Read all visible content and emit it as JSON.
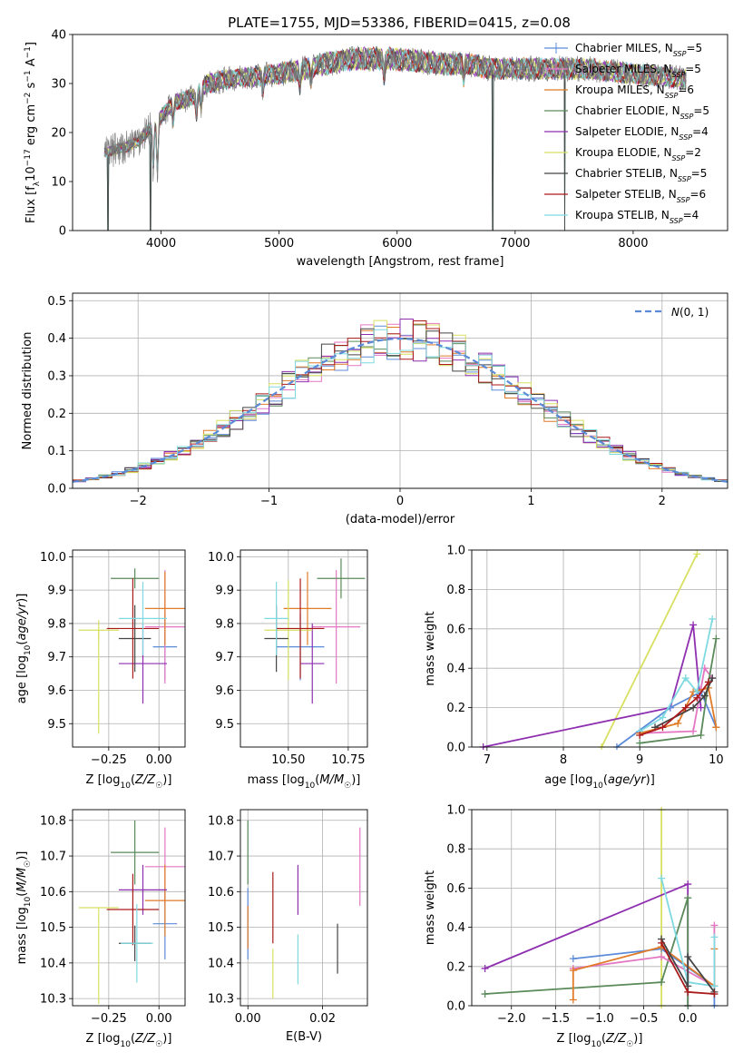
{
  "figure": {
    "title": "PLATE=1755, MJD=53386, FIBERID=0415, z=0.08"
  },
  "series_colors": {
    "Chabrier MILES": "#5b8bd8",
    "Salpeter MILES": "#e377c2",
    "Kroupa MILES": "#e07b27",
    "Chabrier ELODIE": "#5a8a5a",
    "Salpeter ELODIE": "#8e2fb0",
    "Kroupa ELODIE": "#d8e060",
    "Chabrier STELIB": "#444444",
    "Salpeter STELIB": "#aa1a1a",
    "Kroupa STELIB": "#7fd9e0"
  },
  "chart_data": [
    {
      "id": "spectrum",
      "type": "line",
      "title": "PLATE=1755, MJD=53386, FIBERID=0415, z=0.08",
      "xlabel": "wavelength [Angstrom, rest frame]",
      "ylabel": "Flux [f_λ 10^-17 erg cm^-2 s^-1 A^-1]",
      "xlim": [
        3250,
        8800
      ],
      "ylim": [
        0,
        40
      ],
      "xticks": [
        4000,
        5000,
        6000,
        7000,
        8000
      ],
      "yticks": [
        0,
        10,
        20,
        30,
        40
      ],
      "grid": false,
      "legend_loc": "right",
      "legend": [
        {
          "label": "Chabrier MILES, N",
          "sub": "SSP",
          "tail": "=5",
          "series": "Chabrier MILES",
          "marker": true
        },
        {
          "label": "Salpeter MILES, N",
          "sub": "SSP",
          "tail": "=5",
          "series": "Salpeter MILES",
          "marker": true
        },
        {
          "label": "Kroupa MILES, N",
          "sub": "SSP",
          "tail": "=6",
          "series": "Kroupa MILES",
          "marker": false
        },
        {
          "label": "Chabrier ELODIE, N",
          "sub": "SSP",
          "tail": "=5",
          "series": "Chabrier ELODIE",
          "marker": false
        },
        {
          "label": "Salpeter ELODIE, N",
          "sub": "SSP",
          "tail": "=4",
          "series": "Salpeter ELODIE",
          "marker": false
        },
        {
          "label": "Kroupa ELODIE, N",
          "sub": "SSP",
          "tail": "=2",
          "series": "Kroupa ELODIE",
          "marker": false
        },
        {
          "label": "Chabrier STELIB, N",
          "sub": "SSP",
          "tail": "=5",
          "series": "Chabrier STELIB",
          "marker": false
        },
        {
          "label": "Salpeter STELIB, N",
          "sub": "SSP",
          "tail": "=6",
          "series": "Salpeter STELIB",
          "marker": false
        },
        {
          "label": "Kroupa STELIB, N",
          "sub": "SSP",
          "tail": "=4",
          "series": "Kroupa STELIB",
          "marker": false
        }
      ],
      "continuum": [
        [
          3520,
          16
        ],
        [
          3700,
          17
        ],
        [
          3800,
          18
        ],
        [
          3950,
          22
        ],
        [
          4100,
          26
        ],
        [
          4250,
          27
        ],
        [
          4400,
          30
        ],
        [
          4600,
          31
        ],
        [
          4800,
          31.5
        ],
        [
          5000,
          32
        ],
        [
          5200,
          33
        ],
        [
          5400,
          34
        ],
        [
          5600,
          35
        ],
        [
          5800,
          35
        ],
        [
          6000,
          35
        ],
        [
          6200,
          34.5
        ],
        [
          6400,
          34
        ],
        [
          6600,
          34
        ],
        [
          6800,
          33
        ],
        [
          7000,
          33
        ],
        [
          7200,
          33
        ],
        [
          7400,
          33
        ],
        [
          7600,
          33
        ],
        [
          7800,
          32.5
        ],
        [
          8000,
          32
        ],
        [
          8200,
          31.5
        ],
        [
          8400,
          31
        ]
      ],
      "absorption": [
        [
          3934,
          0.6
        ],
        [
          3969,
          0.55
        ],
        [
          4102,
          0.85
        ],
        [
          4300,
          0.85
        ],
        [
          4340,
          0.88
        ],
        [
          4861,
          0.9
        ],
        [
          5175,
          0.9
        ],
        [
          5270,
          0.93
        ],
        [
          5890,
          0.9
        ],
        [
          6563,
          0.92
        ],
        [
          8498,
          0.9
        ],
        [
          8542,
          0.88
        ],
        [
          8662,
          0.9
        ]
      ],
      "spikes_data": [
        [
          3550,
          0
        ],
        [
          3910,
          0
        ],
        [
          6810,
          0
        ],
        [
          7420,
          0
        ]
      ],
      "data_series": "data"
    },
    {
      "id": "residuals",
      "type": "histogram",
      "xlabel": "(data-model)/error",
      "ylabel": "Normed distribution",
      "xlim": [
        -2.5,
        2.5
      ],
      "ylim": [
        0,
        0.52
      ],
      "xticks": [
        -2,
        -1,
        0,
        1,
        2
      ],
      "yticks": [
        0,
        0.1,
        0.2,
        0.3,
        0.4,
        0.5
      ],
      "grid": true,
      "legend_loc": "top-right",
      "legend": [
        {
          "label": "N(0, 1)"
        }
      ],
      "bin_width": 0.1,
      "reference": {
        "name": "N(0,1)",
        "mean": 0,
        "sigma": 1
      }
    },
    {
      "id": "z-age",
      "type": "errorbar",
      "xlabel": "Z [log10(Z/Z☉)]",
      "ylabel": "age [log10(age/yr)]",
      "xlim": [
        -0.43,
        0.13
      ],
      "ylim": [
        9.43,
        10.02
      ],
      "xticks": [
        -0.25,
        0.0
      ],
      "yticks": [
        9.5,
        9.6,
        9.7,
        9.8,
        9.9,
        10.0
      ],
      "grid": true,
      "points": [
        {
          "series": "Chabrier MILES",
          "x": 0.03,
          "xerr": 0.06,
          "y": 9.73,
          "yerr": 0.1
        },
        {
          "series": "Salpeter MILES",
          "x": 0.03,
          "xerr": 0.1,
          "y": 9.79,
          "yerr": 0.17
        },
        {
          "series": "Kroupa MILES",
          "x": 0.03,
          "xerr": 0.1,
          "y": 9.845,
          "yerr": 0.11
        },
        {
          "series": "Chabrier ELODIE",
          "x": -0.12,
          "xerr": 0.12,
          "y": 9.935,
          "yerr": 0.03
        },
        {
          "series": "Salpeter ELODIE",
          "x": -0.08,
          "xerr": 0.12,
          "y": 9.68,
          "yerr": 0.12
        },
        {
          "series": "Kroupa ELODIE",
          "x": -0.3,
          "xerr": 0.1,
          "y": 9.78,
          "yerr": 0.03
        },
        {
          "series": "Chabrier STELIB",
          "x": -0.12,
          "xerr": 0.08,
          "y": 9.755,
          "yerr": 0.1
        },
        {
          "series": "Salpeter STELIB",
          "x": -0.13,
          "xerr": 0.13,
          "y": 9.785,
          "yerr": 0.15
        },
        {
          "series": "Kroupa STELIB",
          "x": -0.08,
          "xerr": 0.12,
          "y": 9.815,
          "yerr": 0.11
        },
        {
          "series": "Kroupa ELODIE",
          "x": -0.3,
          "xerr": 0.0,
          "y": 9.78,
          "yerr": 0.31,
          "asym": [
            0.31,
            0.0
          ]
        }
      ]
    },
    {
      "id": "mass-age",
      "type": "errorbar",
      "xlabel": "mass [log10(M/M☉)]",
      "ylabel": "",
      "xlim": [
        10.3,
        10.83
      ],
      "ylim": [
        9.43,
        10.02
      ],
      "xticks": [
        10.5,
        10.75
      ],
      "yticks": [
        9.5,
        9.6,
        9.7,
        9.8,
        9.9,
        10.0
      ],
      "grid": true,
      "points": [
        {
          "series": "Chabrier MILES",
          "x": 10.55,
          "xerr": 0.1,
          "y": 9.73,
          "yerr": 0.1
        },
        {
          "series": "Salpeter MILES",
          "x": 10.7,
          "xerr": 0.1,
          "y": 9.79,
          "yerr": 0.17
        },
        {
          "series": "Kroupa MILES",
          "x": 10.58,
          "xerr": 0.1,
          "y": 9.845,
          "yerr": 0.11
        },
        {
          "series": "Chabrier ELODIE",
          "x": 10.72,
          "xerr": 0.1,
          "y": 9.935,
          "yerr": 0.06
        },
        {
          "series": "Salpeter ELODIE",
          "x": 10.6,
          "xerr": 0.05,
          "y": 9.68,
          "yerr": 0.12
        },
        {
          "series": "Kroupa ELODIE",
          "x": 10.5,
          "xerr": 0.1,
          "y": 9.78,
          "yerr": 0.15
        },
        {
          "series": "Chabrier STELIB",
          "x": 10.45,
          "xerr": 0.05,
          "y": 9.755,
          "yerr": 0.1
        },
        {
          "series": "Salpeter STELIB",
          "x": 10.55,
          "xerr": 0.1,
          "y": 9.785,
          "yerr": 0.15
        },
        {
          "series": "Kroupa STELIB",
          "x": 10.45,
          "xerr": 0.05,
          "y": 9.815,
          "yerr": 0.11
        }
      ]
    },
    {
      "id": "age-weight",
      "type": "line",
      "xlabel": "age [log10(age/yr)]",
      "ylabel": "mass weight",
      "xlim": [
        6.8,
        10.15
      ],
      "ylim": [
        0,
        1
      ],
      "xticks": [
        7,
        8,
        9,
        10
      ],
      "yticks": [
        0,
        0.2,
        0.4,
        0.6,
        0.8,
        1.0
      ],
      "grid": true,
      "series": [
        {
          "name": "Kroupa ELODIE",
          "x": [
            8.5,
            9.75
          ],
          "y": [
            0.0,
            0.98
          ]
        },
        {
          "name": "Salpeter ELODIE",
          "x": [
            6.95,
            9.4,
            9.7,
            9.8
          ],
          "y": [
            0.0,
            0.2,
            0.62,
            0.2
          ]
        },
        {
          "name": "Chabrier MILES",
          "x": [
            8.7,
            9.4,
            9.8,
            10.0
          ],
          "y": [
            0.0,
            0.2,
            0.28,
            0.1
          ]
        },
        {
          "name": "Salpeter MILES",
          "x": [
            9.0,
            9.7,
            9.85,
            9.95
          ],
          "y": [
            0.07,
            0.08,
            0.4,
            0.35
          ]
        },
        {
          "name": "Kroupa MILES",
          "x": [
            9.0,
            9.5,
            9.7,
            9.9,
            10.0
          ],
          "y": [
            0.07,
            0.12,
            0.28,
            0.3,
            0.1
          ]
        },
        {
          "name": "Kroupa STELIB",
          "x": [
            9.0,
            9.3,
            9.6,
            9.75,
            9.95
          ],
          "y": [
            0.08,
            0.15,
            0.35,
            0.28,
            0.65
          ]
        },
        {
          "name": "Chabrier ELODIE",
          "x": [
            9.0,
            9.8,
            9.9,
            10.0
          ],
          "y": [
            0.02,
            0.06,
            0.33,
            0.55
          ]
        },
        {
          "name": "Chabrier STELIB",
          "x": [
            9.2,
            9.7,
            9.85,
            9.95
          ],
          "y": [
            0.1,
            0.2,
            0.26,
            0.35
          ]
        },
        {
          "name": "Salpeter STELIB",
          "x": [
            9.0,
            9.3,
            9.6,
            9.75,
            9.9
          ],
          "y": [
            0.06,
            0.1,
            0.2,
            0.25,
            0.33
          ]
        }
      ]
    },
    {
      "id": "z-mass",
      "type": "errorbar",
      "xlabel": "Z [log10(Z/Z☉)]",
      "ylabel": "mass [log10(M/M☉)]",
      "xlim": [
        -0.43,
        0.13
      ],
      "ylim": [
        10.28,
        10.83
      ],
      "xticks": [
        -0.25,
        0.0
      ],
      "yticks": [
        10.3,
        10.4,
        10.5,
        10.6,
        10.7,
        10.8
      ],
      "grid": true,
      "points": [
        {
          "series": "Chabrier MILES",
          "x": 0.03,
          "xerr": 0.06,
          "y": 10.51,
          "yerr": 0.1
        },
        {
          "series": "Salpeter MILES",
          "x": 0.03,
          "xerr": 0.1,
          "y": 10.67,
          "yerr": 0.11
        },
        {
          "series": "Kroupa MILES",
          "x": 0.03,
          "xerr": 0.1,
          "y": 10.575,
          "yerr": 0.1
        },
        {
          "series": "Chabrier ELODIE",
          "x": -0.12,
          "xerr": 0.12,
          "y": 10.71,
          "yerr": 0.09
        },
        {
          "series": "Salpeter ELODIE",
          "x": -0.08,
          "xerr": 0.12,
          "y": 10.605,
          "yerr": 0.07
        },
        {
          "series": "Kroupa ELODIE",
          "x": -0.3,
          "xerr": 0.1,
          "y": 10.555,
          "yerr": 0.0
        },
        {
          "series": "Chabrier STELIB",
          "x": -0.12,
          "xerr": 0.08,
          "y": 10.455,
          "yerr": 0.05
        },
        {
          "series": "Salpeter STELIB",
          "x": -0.13,
          "xerr": 0.13,
          "y": 10.55,
          "yerr": 0.1
        },
        {
          "series": "Kroupa STELIB",
          "x": -0.11,
          "xerr": 0.08,
          "y": 10.455,
          "yerr": 0.11
        },
        {
          "series": "Kroupa ELODIE",
          "x": -0.3,
          "xerr": 0.0,
          "y": 10.555,
          "yerr": 0.27,
          "asym": [
            0.27,
            0.0
          ]
        }
      ]
    },
    {
      "id": "ebv-mass",
      "type": "errorbar",
      "xlabel": "E(B-V)",
      "ylabel": "",
      "xlim": [
        -0.002,
        0.032
      ],
      "ylim": [
        10.28,
        10.83
      ],
      "xticks": [
        0.0,
        0.02
      ],
      "yticks": [
        10.3,
        10.4,
        10.5,
        10.6,
        10.7,
        10.8
      ],
      "grid": true,
      "points": [
        {
          "series": "Chabrier MILES",
          "x": 0.0,
          "xerr": 0,
          "y": 10.51,
          "yerr": 0.1
        },
        {
          "series": "Salpeter MILES",
          "x": 0.03,
          "xerr": 0,
          "y": 10.67,
          "yerr": 0.11
        },
        {
          "series": "Kroupa MILES",
          "x": 0.0,
          "xerr": 0,
          "y": 10.5,
          "yerr": 0.06
        },
        {
          "series": "Chabrier ELODIE",
          "x": 0.0,
          "xerr": 0,
          "y": 10.71,
          "yerr": 0.09
        },
        {
          "series": "Salpeter ELODIE",
          "x": 0.0134,
          "xerr": 0,
          "y": 10.605,
          "yerr": 0.07
        },
        {
          "series": "Kroupa ELODIE",
          "x": 0.0067,
          "xerr": 0,
          "y": 10.37,
          "yerr": 0.07
        },
        {
          "series": "Chabrier STELIB",
          "x": 0.024,
          "xerr": 0,
          "y": 10.44,
          "yerr": 0.07
        },
        {
          "series": "Salpeter STELIB",
          "x": 0.0067,
          "xerr": 0,
          "y": 10.555,
          "yerr": 0.1
        },
        {
          "series": "Kroupa STELIB",
          "x": 0.0134,
          "xerr": 0,
          "y": 10.41,
          "yerr": 0.07
        }
      ]
    },
    {
      "id": "z-weight",
      "type": "line",
      "xlabel": "Z [log10(Z/Z☉)]",
      "ylabel": "mass weight",
      "xlim": [
        -2.45,
        0.45
      ],
      "ylim": [
        0,
        1
      ],
      "xticks": [
        -2.0,
        -1.5,
        -1.0,
        -0.5,
        0.0
      ],
      "yticks": [
        0,
        0.2,
        0.4,
        0.6,
        0.8,
        1.0
      ],
      "grid": true,
      "series": [
        {
          "name": "Kroupa ELODIE",
          "x": [
            -0.3,
            -0.3
          ],
          "y": [
            0.0,
            1.0
          ]
        },
        {
          "name": "Salpeter ELODIE",
          "x": [
            -2.3,
            0.0,
            0.0
          ],
          "y": [
            0.19,
            0.62,
            0.0
          ]
        },
        {
          "name": "Chabrier ELODIE",
          "x": [
            -2.3,
            -0.3,
            0.0,
            0.0
          ],
          "y": [
            0.06,
            0.12,
            0.55,
            0.0
          ]
        },
        {
          "name": "Chabrier MILES",
          "x": [
            -1.3,
            -0.3,
            0.3,
            0.3
          ],
          "y": [
            0.24,
            0.29,
            0.1,
            0.0
          ]
        },
        {
          "name": "Salpeter MILES",
          "x": [
            -1.3,
            -0.3,
            0.3,
            0.3
          ],
          "y": [
            0.19,
            0.25,
            0.1,
            0.41
          ]
        },
        {
          "name": "Kroupa MILES",
          "x": [
            -1.3,
            -1.3,
            -0.3,
            0.3,
            0.3
          ],
          "y": [
            0.03,
            0.18,
            0.3,
            0.1,
            0.29
          ]
        },
        {
          "name": "Kroupa STELIB",
          "x": [
            -0.3,
            0.0,
            0.3,
            0.3
          ],
          "y": [
            0.65,
            0.12,
            0.1,
            0.35
          ]
        },
        {
          "name": "Chabrier STELIB",
          "x": [
            -0.3,
            0.0,
            0.0,
            0.3
          ],
          "y": [
            0.34,
            0.1,
            0.25,
            0.07
          ]
        },
        {
          "name": "Salpeter STELIB",
          "x": [
            -0.3,
            0.0,
            0.3
          ],
          "y": [
            0.32,
            0.07,
            0.06
          ]
        }
      ]
    }
  ]
}
